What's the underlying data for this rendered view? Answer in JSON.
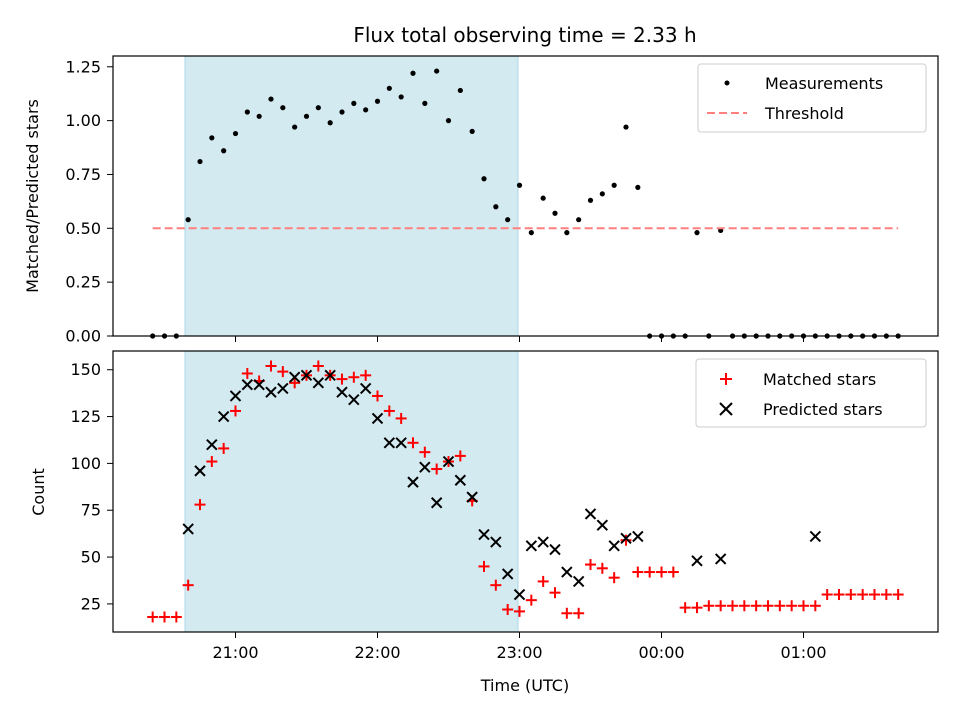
{
  "chart_data": {
    "title": "Flux total observing time = 2.33 h",
    "xlabel": "Time (UTC)",
    "x_ticks": [
      "21:00",
      "22:00",
      "23:00",
      "00:00",
      "01:00"
    ],
    "highlight_span": [
      "20:37",
      "22:58"
    ],
    "highlight_color": "#d3eaf0",
    "charts": [
      {
        "type": "scatter",
        "ylabel": "Matched/Predicted stars",
        "ylim": [
          0,
          1.3
        ],
        "y_ticks": [
          "0.00",
          "0.25",
          "0.50",
          "0.75",
          "1.00",
          "1.25"
        ],
        "legend": {
          "placement": "top-right",
          "entries": [
            "Measurements",
            "Threshold"
          ]
        },
        "series": [
          {
            "name": "Measurements",
            "marker": "dot",
            "color": "#000000",
            "x": [
              "20:25",
              "20:30",
              "20:35",
              "20:40",
              "20:45",
              "20:50",
              "20:55",
              "21:00",
              "21:05",
              "21:10",
              "21:15",
              "21:20",
              "21:25",
              "21:30",
              "21:35",
              "21:40",
              "21:45",
              "21:50",
              "21:55",
              "22:00",
              "22:05",
              "22:10",
              "22:15",
              "22:20",
              "22:25",
              "22:30",
              "22:35",
              "22:40",
              "22:45",
              "22:50",
              "22:55",
              "23:00",
              "23:05",
              "23:10",
              "23:15",
              "23:20",
              "23:25",
              "23:30",
              "23:35",
              "23:40",
              "23:45",
              "23:50",
              "23:55",
              "00:00",
              "00:05",
              "00:10",
              "00:15",
              "00:20",
              "00:25",
              "00:30",
              "00:35",
              "00:40",
              "00:45",
              "00:50",
              "00:55",
              "01:00",
              "01:05",
              "01:10",
              "01:15",
              "01:20",
              "01:25",
              "01:30",
              "01:35",
              "01:40"
            ],
            "y": [
              0,
              0,
              0,
              0.54,
              0.81,
              0.92,
              0.86,
              0.94,
              1.04,
              1.02,
              1.1,
              1.06,
              0.97,
              1.02,
              1.06,
              0.99,
              1.04,
              1.08,
              1.05,
              1.09,
              1.15,
              1.11,
              1.22,
              1.08,
              1.23,
              1.0,
              1.14,
              0.95,
              0.73,
              0.6,
              0.54,
              0.7,
              0.48,
              0.64,
              0.57,
              0.48,
              0.54,
              0.63,
              0.66,
              0.7,
              0.97,
              0.69,
              0,
              0,
              0,
              0,
              0.48,
              0,
              0.49,
              0,
              0,
              0,
              0,
              0,
              0,
              0,
              0,
              0,
              0,
              0,
              0,
              0,
              0,
              0
            ]
          },
          {
            "name": "Threshold",
            "line": "dashed",
            "color": "#ff7f7f",
            "x": [
              "20:25",
              "01:40"
            ],
            "y": [
              0.5,
              0.5
            ]
          }
        ]
      },
      {
        "type": "scatter",
        "ylabel": "Count",
        "ylim": [
          10,
          160
        ],
        "y_ticks": [
          "25",
          "50",
          "75",
          "100",
          "125",
          "150"
        ],
        "legend": {
          "placement": "top-right",
          "entries": [
            "Matched stars",
            "Predicted stars"
          ]
        },
        "series": [
          {
            "name": "Matched stars",
            "marker": "plus",
            "color": "#ff0000",
            "x": [
              "20:25",
              "20:30",
              "20:35",
              "20:40",
              "20:45",
              "20:50",
              "20:55",
              "21:00",
              "21:05",
              "21:10",
              "21:15",
              "21:20",
              "21:25",
              "21:30",
              "21:35",
              "21:40",
              "21:45",
              "21:50",
              "21:55",
              "22:00",
              "22:05",
              "22:10",
              "22:15",
              "22:20",
              "22:25",
              "22:30",
              "22:35",
              "22:40",
              "22:45",
              "22:50",
              "22:55",
              "23:00",
              "23:05",
              "23:10",
              "23:15",
              "23:20",
              "23:25",
              "23:30",
              "23:35",
              "23:40",
              "23:45",
              "23:50",
              "23:55",
              "00:00",
              "00:05",
              "00:10",
              "00:15",
              "00:20",
              "00:25",
              "00:30",
              "00:35",
              "00:40",
              "00:45",
              "00:50",
              "00:55",
              "01:00",
              "01:05",
              "01:10",
              "01:15",
              "01:20",
              "01:25",
              "01:30",
              "01:35",
              "01:40"
            ],
            "y": [
              18,
              18,
              18,
              35,
              78,
              101,
              108,
              128,
              148,
              144,
              152,
              149,
              143,
              147,
              152,
              147,
              145,
              146,
              147,
              136,
              128,
              124,
              111,
              106,
              97,
              101,
              104,
              80,
              45,
              35,
              22,
              21,
              27,
              37,
              31,
              20,
              20,
              46,
              44,
              39,
              59,
              42,
              42,
              42,
              42,
              23,
              23,
              24,
              24,
              24,
              24,
              24,
              24,
              24,
              24,
              24,
              24,
              30,
              30,
              30,
              30,
              30,
              30,
              30
            ]
          },
          {
            "name": "Predicted stars",
            "marker": "x",
            "color": "#000000",
            "x": [
              "20:40",
              "20:45",
              "20:50",
              "20:55",
              "21:00",
              "21:05",
              "21:10",
              "21:15",
              "21:20",
              "21:25",
              "21:30",
              "21:35",
              "21:40",
              "21:45",
              "21:50",
              "21:55",
              "22:00",
              "22:05",
              "22:10",
              "22:15",
              "22:20",
              "22:25",
              "22:30",
              "22:35",
              "22:40",
              "22:45",
              "22:50",
              "22:55",
              "23:00",
              "23:05",
              "23:10",
              "23:15",
              "23:20",
              "23:25",
              "23:30",
              "23:35",
              "23:40",
              "23:45",
              "23:50",
              "00:15",
              "00:25",
              "01:05"
            ],
            "y": [
              65,
              96,
              110,
              125,
              136,
              142,
              142,
              138,
              140,
              146,
              147,
              143,
              147,
              138,
              134,
              140,
              124,
              111,
              111,
              90,
              98,
              79,
              101,
              91,
              82,
              62,
              58,
              41,
              30,
              56,
              58,
              54,
              42,
              37,
              73,
              67,
              56,
              60,
              61,
              48,
              49,
              61
            ]
          }
        ]
      }
    ]
  }
}
